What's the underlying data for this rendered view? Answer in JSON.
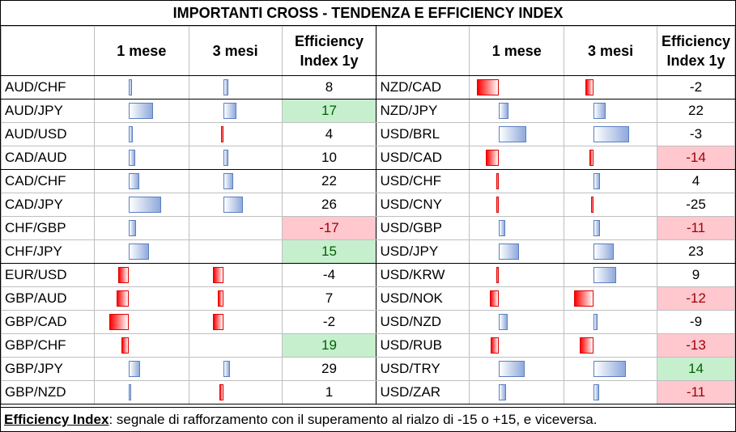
{
  "title": "IMPORTANTI CROSS - TENDENZA E EFFICIENCY INDEX",
  "headers": {
    "m1": "1 mese",
    "m3": "3 mesi",
    "ei_line1": "Efficiency",
    "ei_line2": "Index 1y"
  },
  "left": [
    {
      "pair": "AUD/CHF",
      "m1": 0.5,
      "m3": 0.7,
      "ei": "8",
      "hl": ""
    },
    {
      "pair": "AUD/JPY",
      "m1": 3.3,
      "m3": 1.8,
      "ei": "17",
      "hl": "pos"
    },
    {
      "pair": "AUD/USD",
      "m1": 0.6,
      "m3": -0.1,
      "ei": "4",
      "hl": ""
    },
    {
      "pair": "CAD/AUD",
      "m1": 0.9,
      "m3": 0.7,
      "ei": "10",
      "hl": ""
    },
    {
      "pair": "CAD/CHF",
      "m1": 1.5,
      "m3": 1.4,
      "ei": "22",
      "hl": ""
    },
    {
      "pair": "CAD/JPY",
      "m1": 4.4,
      "m3": 2.7,
      "ei": "26",
      "hl": ""
    },
    {
      "pair": "CHF/GBP",
      "m1": 1.0,
      "m3": 0.0,
      "ei": "-17",
      "hl": "neg"
    },
    {
      "pair": "CHF/JPY",
      "m1": 2.8,
      "m3": 0.0,
      "ei": "15",
      "hl": "pos"
    },
    {
      "pair": "EUR/USD",
      "m1": -1.4,
      "m3": -1.4,
      "ei": "-4",
      "hl": ""
    },
    {
      "pair": "GBP/AUD",
      "m1": -1.7,
      "m3": -0.7,
      "ei": "7",
      "hl": ""
    },
    {
      "pair": "GBP/CAD",
      "m1": -2.7,
      "m3": -1.4,
      "ei": "-2",
      "hl": ""
    },
    {
      "pair": "GBP/CHF",
      "m1": -1.0,
      "m3": 0.0,
      "ei": "19",
      "hl": "pos"
    },
    {
      "pair": "GBP/JPY",
      "m1": 1.6,
      "m3": 0.9,
      "ei": "29",
      "hl": ""
    },
    {
      "pair": "GBP/NZD",
      "m1": 0.3,
      "m3": -0.5,
      "ei": "1",
      "hl": ""
    }
  ],
  "right": [
    {
      "pair": "NZD/CAD",
      "m1": -3.0,
      "m3": -1.1,
      "ei": "-2",
      "hl": ""
    },
    {
      "pair": "NZD/JPY",
      "m1": 1.3,
      "m3": 1.6,
      "ei": "22",
      "hl": ""
    },
    {
      "pair": "USD/BRL",
      "m1": 3.7,
      "m3": 4.9,
      "ei": "-3",
      "hl": ""
    },
    {
      "pair": "USD/CAD",
      "m1": -1.8,
      "m3": -0.6,
      "ei": "-14",
      "hl": "neg"
    },
    {
      "pair": "USD/CHF",
      "m1": -0.2,
      "m3": 0.9,
      "ei": "4",
      "hl": ""
    },
    {
      "pair": "USD/CNY",
      "m1": -0.2,
      "m3": -0.4,
      "ei": "-25",
      "hl": ""
    },
    {
      "pair": "USD/GBP",
      "m1": 0.9,
      "m3": 0.9,
      "ei": "-11",
      "hl": "neg"
    },
    {
      "pair": "USD/JPY",
      "m1": 2.7,
      "m3": 2.8,
      "ei": "23",
      "hl": ""
    },
    {
      "pair": "USD/KRW",
      "m1": -0.1,
      "m3": 3.1,
      "ei": "9",
      "hl": ""
    },
    {
      "pair": "USD/NOK",
      "m1": -1.3,
      "m3": -2.7,
      "ei": "-12",
      "hl": "neg"
    },
    {
      "pair": "USD/NZD",
      "m1": 1.2,
      "m3": 0.5,
      "ei": "-9",
      "hl": ""
    },
    {
      "pair": "USD/RUB",
      "m1": -1.1,
      "m3": -1.9,
      "ei": "-13",
      "hl": "neg"
    },
    {
      "pair": "USD/TRY",
      "m1": 3.5,
      "m3": 4.4,
      "ei": "14",
      "hl": "pos"
    },
    {
      "pair": "USD/ZAR",
      "m1": 1.0,
      "m3": 0.8,
      "ei": "-11",
      "hl": "neg"
    }
  ],
  "footer": {
    "label": "Efficiency Index",
    "text": ": segnale di rafforzamento con il superamento al rialzo di -15 o +15, e viceversa."
  },
  "colors": {
    "up_bar": "#8ea9db",
    "down_bar": "#ff0000",
    "pos_fill": "#c6efce",
    "neg_fill": "#ffc7ce"
  }
}
